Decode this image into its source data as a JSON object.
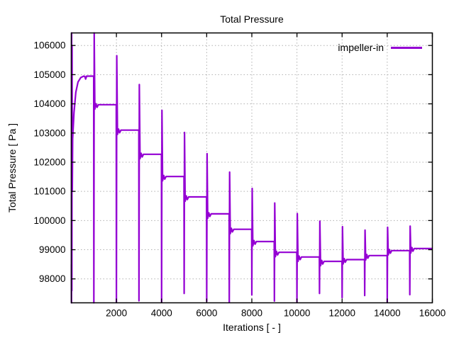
{
  "window": {
    "background": "#ffffff"
  },
  "chart_data": {
    "type": "line",
    "title": "Total Pressure",
    "xlabel": "Iterations [ - ]",
    "ylabel": "Total Pressure [ Pa ]",
    "grid": true,
    "legend": {
      "position": "top-right",
      "entries": [
        {
          "label": "impeller-in",
          "color": "#9400d3"
        }
      ]
    },
    "axes": {
      "xlim": [
        0,
        16000
      ],
      "ylim": [
        97180,
        106430
      ],
      "x_ticks": [
        2000,
        4000,
        6000,
        8000,
        10000,
        12000,
        14000,
        16000
      ],
      "y_ticks": [
        98000,
        99000,
        100000,
        101000,
        102000,
        103000,
        104000,
        105000,
        106000
      ],
      "border_color": "#000000",
      "grid_color": "#b0b0b0"
    },
    "series": [
      {
        "name": "impeller-in",
        "color": "#9400d3",
        "line_width": 2.2,
        "description": "Convergence history: one plateau per 1000-iteration block, sharp down/up spike at every block boundary",
        "block_size": 1000,
        "plateaus": [
          104950,
          103970,
          103100,
          102270,
          101510,
          100810,
          100230,
          99700,
          99280,
          98910,
          98750,
          98600,
          98660,
          98800,
          98970,
          99040
        ],
        "spikes": [
          {
            "x": 1000,
            "peak": 106430,
            "trough": 97180
          },
          {
            "x": 2000,
            "peak": 105650,
            "trough": 97190
          },
          {
            "x": 3000,
            "peak": 104660,
            "trough": 97250
          },
          {
            "x": 4000,
            "peak": 103780,
            "trough": 97200
          },
          {
            "x": 5000,
            "peak": 103020,
            "trough": 97500
          },
          {
            "x": 6000,
            "peak": 102290,
            "trough": 97230
          },
          {
            "x": 7000,
            "peak": 101660,
            "trough": 97200
          },
          {
            "x": 8000,
            "peak": 101100,
            "trough": 97450
          },
          {
            "x": 9000,
            "peak": 100600,
            "trough": 97240
          },
          {
            "x": 10000,
            "peak": 100240,
            "trough": 97190
          },
          {
            "x": 11000,
            "peak": 99980,
            "trough": 97500
          },
          {
            "x": 12000,
            "peak": 99790,
            "trough": 97360
          },
          {
            "x": 13000,
            "peak": 99670,
            "trough": 97430
          },
          {
            "x": 14000,
            "peak": 99770,
            "trough": 97190
          },
          {
            "x": 15000,
            "peak": 99810,
            "trough": 97460
          }
        ],
        "initial_transient": [
          [
            5,
            98500
          ],
          [
            9,
            97180
          ],
          [
            16,
            106430
          ],
          [
            26,
            97600
          ],
          [
            34,
            106000
          ],
          [
            44,
            101000
          ],
          [
            60,
            102800
          ],
          [
            120,
            103700
          ],
          [
            200,
            104400
          ],
          [
            300,
            104750
          ],
          [
            420,
            104900
          ],
          [
            550,
            104950
          ],
          [
            600,
            104940
          ],
          [
            635,
            104850
          ],
          [
            680,
            104950
          ]
        ]
      }
    ]
  }
}
